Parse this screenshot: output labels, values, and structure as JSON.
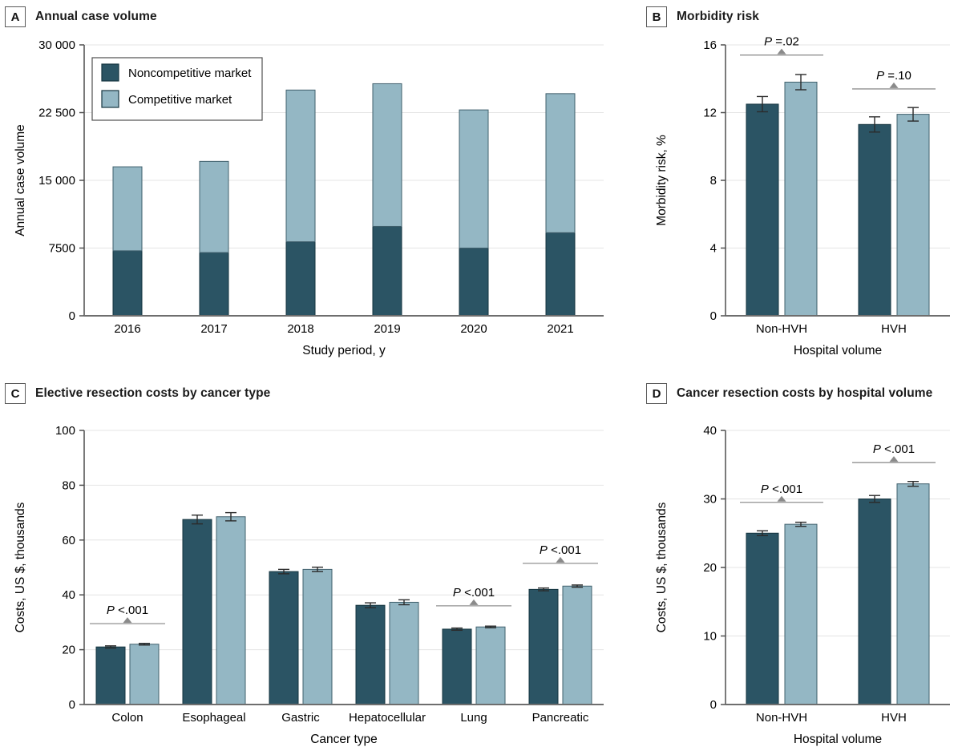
{
  "figure": {
    "background": "#ffffff",
    "colors": {
      "noncompetitive_fill": "#2b5464",
      "noncompetitive_stroke": "#16353f",
      "competitive_fill": "#94b7c4",
      "competitive_stroke": "#41606d",
      "grid": "#e4e4e4",
      "y_axis": "#4f4f4f",
      "x_axis": "#6e6e6e",
      "error_bar": "#2b2b2b",
      "annotation_line": "#909090",
      "annotation_triangle": "#8a8a8a",
      "text": "#000000",
      "title_text": "#1b1b1b"
    }
  },
  "chart_data": [
    {
      "panel": "A",
      "type": "stacked-bar",
      "title": "Annual case volume",
      "categories": [
        "2016",
        "2017",
        "2018",
        "2019",
        "2020",
        "2021"
      ],
      "series": [
        {
          "name": "Noncompetitive market",
          "values": [
            7200,
            7000,
            8200,
            9900,
            7500,
            9200
          ]
        },
        {
          "name": "Competitive market",
          "values": [
            9300,
            10100,
            16800,
            15800,
            15300,
            15400
          ]
        }
      ],
      "stacked_totals": [
        16500,
        17100,
        25000,
        25700,
        22800,
        24600
      ],
      "xlabel": "Study period, y",
      "ylabel": "Annual case volume",
      "ylim": [
        0,
        30000
      ],
      "yticks": [
        0,
        7500,
        15000,
        22500,
        30000
      ],
      "ytick_labels": [
        "0",
        "7500",
        "15 000",
        "22 500",
        "30 000"
      ],
      "grid": "on",
      "legend": true,
      "legend_position": "upper-left"
    },
    {
      "panel": "B",
      "type": "grouped-bar",
      "title": "Morbidity risk",
      "categories": [
        "Non-HVH",
        "HVH"
      ],
      "series": [
        {
          "name": "Noncompetitive market",
          "values": [
            12.5,
            11.3
          ],
          "errors": [
            0.45,
            0.45
          ]
        },
        {
          "name": "Competitive market",
          "values": [
            13.8,
            11.9
          ],
          "errors": [
            0.45,
            0.4
          ]
        }
      ],
      "xlabel": "Hospital volume",
      "ylabel": "Morbidity risk, %",
      "ylim": [
        0,
        16
      ],
      "yticks": [
        0,
        4,
        8,
        12,
        16
      ],
      "ytick_labels": [
        "0",
        "4",
        "8",
        "12",
        "16"
      ],
      "grid": "on",
      "legend": false,
      "p_annotations": [
        {
          "category": "Non-HVH",
          "label": "P =.02",
          "line_y": 15.4
        },
        {
          "category": "HVH",
          "label": "P =.10",
          "line_y": 13.4
        }
      ]
    },
    {
      "panel": "C",
      "type": "grouped-bar",
      "title": "Elective resection costs by cancer type",
      "categories": [
        "Colon",
        "Esophageal",
        "Gastric",
        "Hepatocellular",
        "Lung",
        "Pancreatic"
      ],
      "series": [
        {
          "name": "Noncompetitive market",
          "values": [
            21,
            67.5,
            48.5,
            36.2,
            27.5,
            42
          ],
          "errors": [
            0.4,
            1.6,
            0.8,
            0.9,
            0.4,
            0.5
          ]
        },
        {
          "name": "Competitive market",
          "values": [
            22,
            68.5,
            49.3,
            37.3,
            28.3,
            43.2
          ],
          "errors": [
            0.3,
            1.5,
            0.8,
            0.9,
            0.3,
            0.4
          ]
        }
      ],
      "xlabel": "Cancer type",
      "ylabel": "Costs, US $, thousands",
      "ylim": [
        0,
        100
      ],
      "yticks": [
        0,
        20,
        40,
        60,
        80,
        100
      ],
      "ytick_labels": [
        "0",
        "20",
        "40",
        "60",
        "80",
        "100"
      ],
      "grid": "on",
      "legend": false,
      "p_annotations": [
        {
          "category": "Colon",
          "label": "P <.001",
          "line_y": 29.5
        },
        {
          "category": "Lung",
          "label": "P <.001",
          "line_y": 36
        },
        {
          "category": "Pancreatic",
          "label": "P <.001",
          "line_y": 51.5
        }
      ]
    },
    {
      "panel": "D",
      "type": "grouped-bar",
      "title": "Cancer resection costs by hospital volume",
      "categories": [
        "Non-HVH",
        "HVH"
      ],
      "series": [
        {
          "name": "Noncompetitive market",
          "values": [
            25,
            30
          ],
          "errors": [
            0.35,
            0.5
          ]
        },
        {
          "name": "Competitive market",
          "values": [
            26.3,
            32.2
          ],
          "errors": [
            0.3,
            0.35
          ]
        }
      ],
      "xlabel": "Hospital volume",
      "ylabel": "Costs, US $, thousands",
      "ylim": [
        0,
        40
      ],
      "yticks": [
        0,
        10,
        20,
        30,
        40
      ],
      "ytick_labels": [
        "0",
        "10",
        "20",
        "30",
        "40"
      ],
      "grid": "on",
      "legend": false,
      "p_annotations": [
        {
          "category": "Non-HVH",
          "label": "P <.001",
          "line_y": 29.5
        },
        {
          "category": "HVH",
          "label": "P <.001",
          "line_y": 35.3
        }
      ]
    }
  ]
}
